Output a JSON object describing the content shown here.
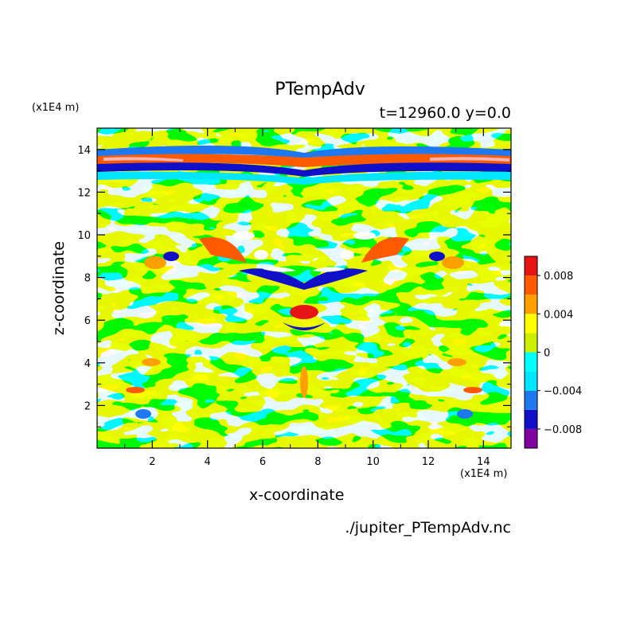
{
  "chart_data": {
    "type": "heatmap",
    "title": "PTempAdv",
    "time_label": "t=12960.0 y=0.0",
    "xlabel": "x-coordinate",
    "ylabel": "z-coordinate",
    "x_unit": "(x1E4 m)",
    "z_unit": "(x1E4 m)",
    "file_label": "./jupiter_PTempAdv.nc",
    "xlim": [
      0,
      15
    ],
    "ylim": [
      0,
      15
    ],
    "x_ticks": [
      2,
      4,
      6,
      8,
      10,
      12,
      14
    ],
    "y_ticks": [
      2,
      4,
      6,
      8,
      10,
      12,
      14
    ],
    "colorbar": {
      "range": [
        -0.01,
        0.01
      ],
      "levels": [
        -0.01,
        -0.008,
        -0.006,
        -0.004,
        -0.002,
        0,
        0.002,
        0.004,
        0.006,
        0.008,
        0.01
      ],
      "colors": [
        "#8000a0",
        "#1010c8",
        "#1e78f0",
        "#00e6ff",
        "#00ffff",
        "#ccee00",
        "#ffff00",
        "#ffa000",
        "#ff5a00",
        "#e61414",
        "#ffb4b4"
      ],
      "tick_values": [
        0.008,
        0.004,
        0,
        -0.004,
        -0.008
      ],
      "tick_labels": [
        "0.008",
        "0.004",
        "0",
        "−0.004",
        "−0.008"
      ]
    }
  }
}
